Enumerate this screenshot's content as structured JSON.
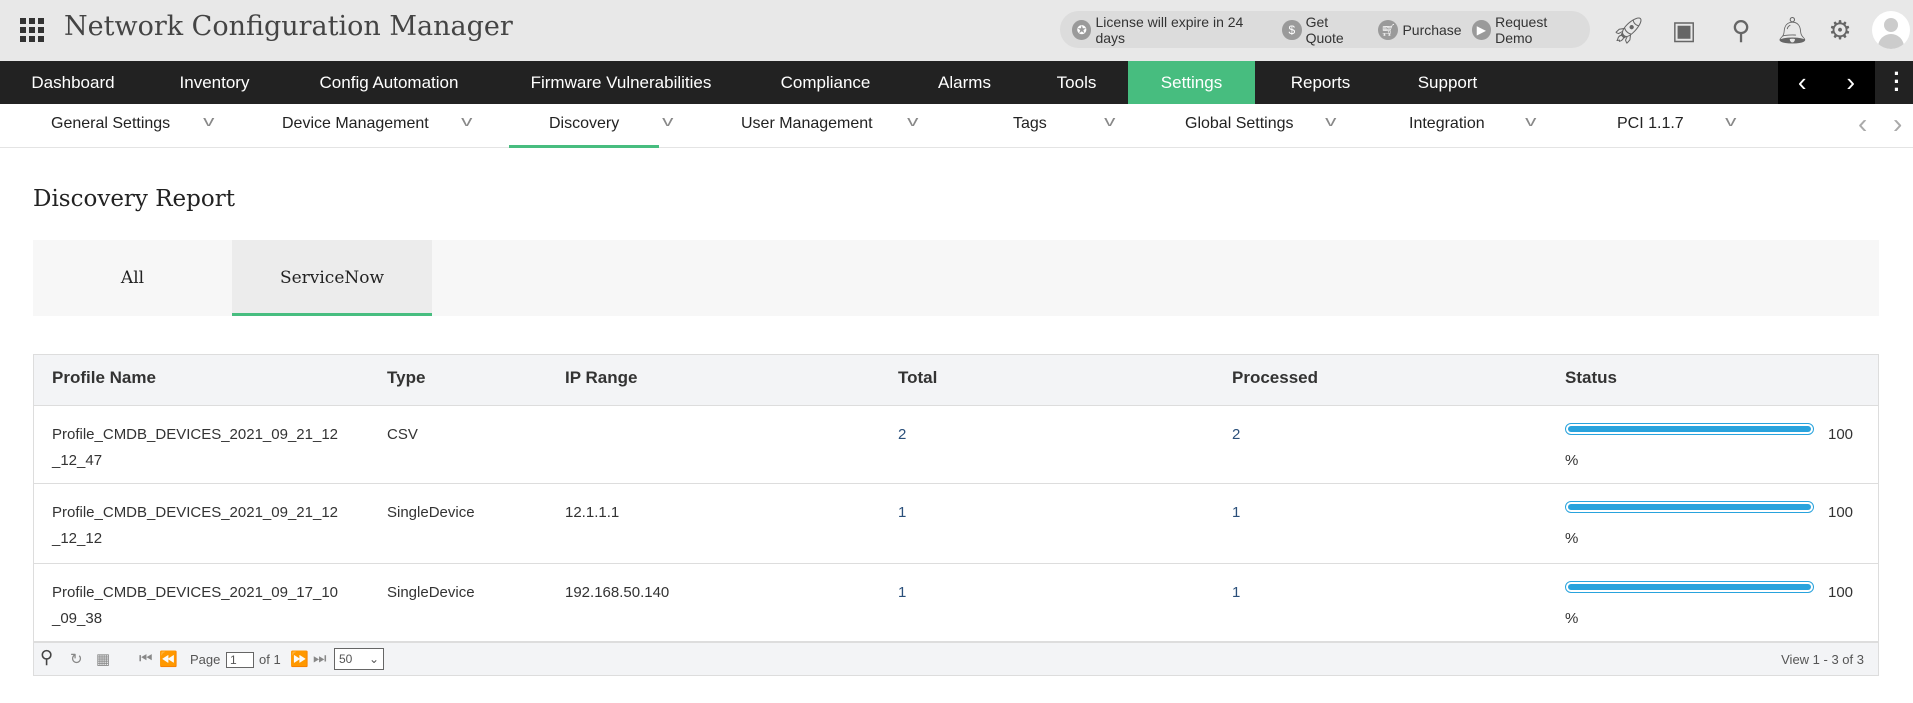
{
  "app": {
    "title": "Network Configuration Manager"
  },
  "header": {
    "license": "License will expire in 24 days",
    "get_quote": "Get Quote",
    "purchase": "Purchase",
    "request_demo": "Request Demo"
  },
  "nav": {
    "items": [
      "Dashboard",
      "Inventory",
      "Config Automation",
      "Firmware Vulnerabilities",
      "Compliance",
      "Alarms",
      "Tools",
      "Settings",
      "Reports",
      "Support"
    ],
    "active": "Settings"
  },
  "subnav": {
    "items": [
      "General Settings",
      "Device Management",
      "Discovery",
      "User Management",
      "Tags",
      "Global Settings",
      "Integration",
      "PCI 1.1.7"
    ],
    "active": "Discovery"
  },
  "page": {
    "title": "Discovery Report",
    "tabs": [
      "All",
      "ServiceNow"
    ],
    "active_tab": "ServiceNow"
  },
  "table": {
    "columns": [
      "Profile Name",
      "Type",
      "IP Range",
      "Total",
      "Processed",
      "Status"
    ],
    "rows": [
      {
        "profile": "Profile_CMDB_DEVICES_2021_09_21_12_12_47",
        "profile_l1": "Profile_CMDB_DEVICES_2021_09_21_12",
        "profile_l2": "_12_47",
        "type": "CSV",
        "ip": "",
        "total": "2",
        "processed": "2",
        "status": "100",
        "unit": "%",
        "progress": 100
      },
      {
        "profile": "Profile_CMDB_DEVICES_2021_09_21_12_12_12",
        "profile_l1": "Profile_CMDB_DEVICES_2021_09_21_12",
        "profile_l2": "_12_12",
        "type": "SingleDevice",
        "ip": "12.1.1.1",
        "total": "1",
        "processed": "1",
        "status": "100",
        "unit": "%",
        "progress": 100
      },
      {
        "profile": "Profile_CMDB_DEVICES_2021_09_17_10_09_38",
        "profile_l1": "Profile_CMDB_DEVICES_2021_09_17_10",
        "profile_l2": "_09_38",
        "type": "SingleDevice",
        "ip": "192.168.50.140",
        "total": "1",
        "processed": "1",
        "status": "100",
        "unit": "%",
        "progress": 100
      }
    ]
  },
  "pager": {
    "page_label": "Page",
    "page": "1",
    "of_label": "of 1",
    "page_size": "50",
    "view": "View 1 - 3 of 3"
  },
  "colors": {
    "accent": "#47bd7f",
    "nav_bg": "#222222",
    "progress": "#29a3dd"
  }
}
